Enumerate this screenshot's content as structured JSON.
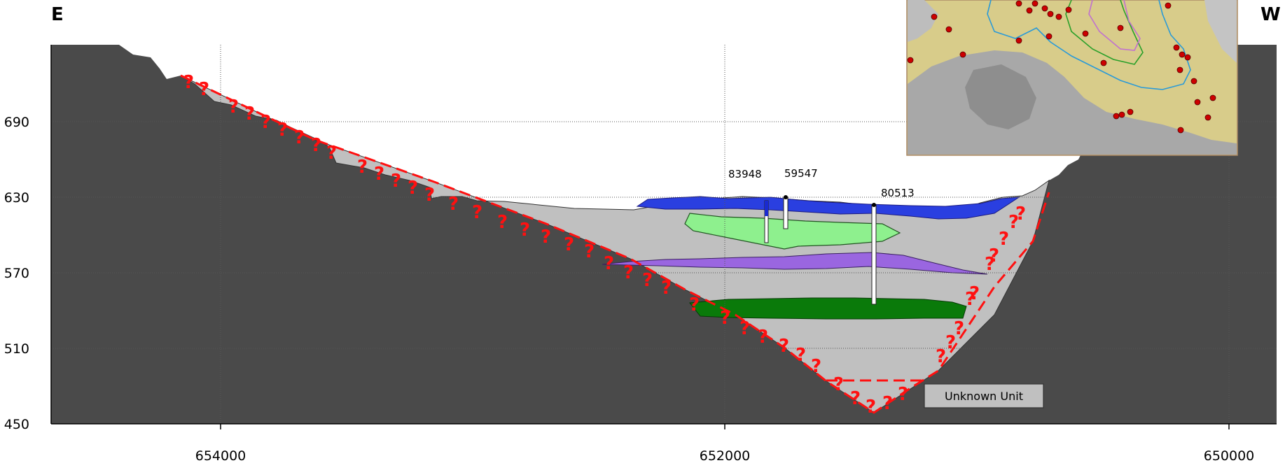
{
  "labels": {
    "left_corner": "E",
    "right_corner": "W"
  },
  "axis": {
    "y_ticks": [
      "690",
      "630",
      "570",
      "510",
      "450"
    ],
    "x_ticks": [
      "654000",
      "652000",
      "650000"
    ]
  },
  "wells": [
    {
      "id": "83948"
    },
    {
      "id": "59547"
    },
    {
      "id": "80513"
    }
  ],
  "legend": {
    "unknown_unit": "Unknown Unit"
  },
  "uncertainty_marker": "?",
  "colors": {
    "bedrock": "#4a4a4a",
    "fill_gray": "#c0c0c0",
    "blue_unit": "#2a3fe0",
    "light_green_unit": "#8ef08e",
    "purple_unit": "#9a66e0",
    "dark_green_unit": "#0a7a0a",
    "uncertain_contact": "#ff1010",
    "map_base": "#d8cc8a"
  },
  "inset_map": {
    "icons": [
      "hillshade-terrain",
      "well-location-dots",
      "outline-contours"
    ]
  }
}
